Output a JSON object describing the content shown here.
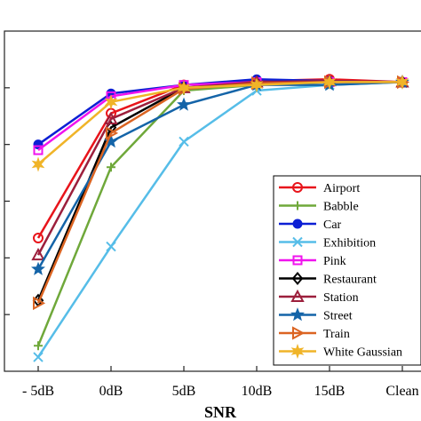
{
  "chart_data": {
    "type": "line",
    "title": "",
    "xlabel": "SNR",
    "ylabel": "",
    "categories": [
      "- 5dB",
      "0dB",
      "5dB",
      "10dB",
      "15dB",
      "Clean"
    ],
    "ylim": [
      0,
      6
    ],
    "grid": false,
    "legend_position": "bottom-right",
    "series": [
      {
        "name": "Airport",
        "color": "#e8141b",
        "marker": "circle",
        "values": [
          2.35,
          4.55,
          5.05,
          5.12,
          5.15,
          5.1
        ]
      },
      {
        "name": "Babble",
        "color": "#6fa83a",
        "marker": "plus",
        "values": [
          0.45,
          3.6,
          4.95,
          5.05,
          5.1,
          5.1
        ]
      },
      {
        "name": "Car",
        "color": "#0c1fd4",
        "marker": "dot",
        "values": [
          4.0,
          4.9,
          5.05,
          5.15,
          5.12,
          5.1
        ]
      },
      {
        "name": "Exhibition",
        "color": "#56bde8",
        "marker": "x",
        "values": [
          0.25,
          2.2,
          4.05,
          4.95,
          5.05,
          5.1
        ]
      },
      {
        "name": "Pink",
        "color": "#f013ee",
        "marker": "square",
        "values": [
          3.9,
          4.85,
          5.05,
          5.1,
          5.1,
          5.1
        ]
      },
      {
        "name": "Restaurant",
        "color": "#000000",
        "marker": "diamond",
        "values": [
          1.25,
          4.3,
          5.0,
          5.08,
          5.1,
          5.1
        ]
      },
      {
        "name": "Station",
        "color": "#9c1f3c",
        "marker": "triangle",
        "values": [
          2.05,
          4.45,
          5.0,
          5.1,
          5.12,
          5.1
        ]
      },
      {
        "name": "Street",
        "color": "#1464a8",
        "marker": "star",
        "values": [
          1.8,
          4.05,
          4.7,
          5.05,
          5.05,
          5.1
        ]
      },
      {
        "name": "Train",
        "color": "#db6422",
        "marker": "triangle-right",
        "values": [
          1.2,
          4.2,
          4.98,
          5.08,
          5.1,
          5.1
        ]
      },
      {
        "name": "White Gaussian",
        "color": "#f0b428",
        "marker": "hexagram",
        "values": [
          3.65,
          4.75,
          5.0,
          5.05,
          5.1,
          5.1
        ]
      }
    ]
  }
}
